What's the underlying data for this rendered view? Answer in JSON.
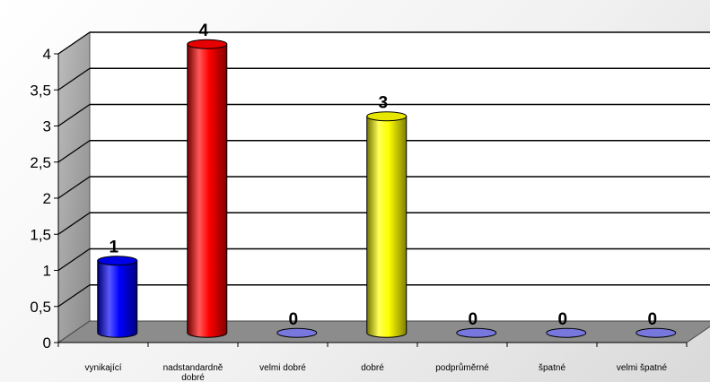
{
  "chart_data": {
    "type": "bar",
    "style": "3d-cylinder",
    "categories": [
      "vynikající",
      "nadstandardně dobré",
      "velmi dobré",
      "dobré",
      "podprůměrné",
      "špatné",
      "velmi špatné"
    ],
    "values": [
      1,
      4,
      0,
      3,
      0,
      0,
      0
    ],
    "data_labels": [
      "1",
      "4",
      "0",
      "3",
      "0",
      "0",
      "0"
    ],
    "ylim": [
      0,
      4
    ],
    "yticks": [
      "0",
      "0,5",
      "1",
      "1,5",
      "2",
      "2,5",
      "3",
      "3,5",
      "4"
    ],
    "grid": true,
    "legend": "none",
    "colors": {
      "bars": [
        "#0000ff",
        "#ff0000",
        "#7777dd",
        "#ffff00",
        "#7777dd",
        "#7777dd",
        "#7777dd"
      ],
      "floor": "#8c8c8c",
      "side_wall": "#a6a6a6",
      "back_wall": "#ffffff"
    }
  }
}
